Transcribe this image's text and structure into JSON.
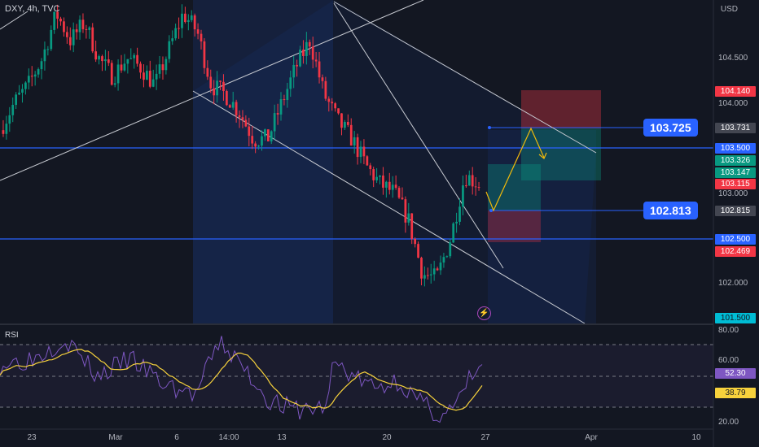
{
  "header": {
    "symbol": "DXY",
    "interval": "4h",
    "source": "TVC",
    "separator": ", "
  },
  "currency": "USD",
  "price_ticks": [
    "104.500",
    "104.000",
    "103.000",
    "102.000"
  ],
  "price_tags": [
    {
      "value": "104.140",
      "color": "#f23645"
    },
    {
      "value": "103.731",
      "color": "#434651"
    },
    {
      "value": "103.500",
      "color": "#2962ff"
    },
    {
      "value": "103.326",
      "color": "#089981"
    },
    {
      "value": "103.147",
      "color": "#089981"
    },
    {
      "value": "103.115",
      "color": "#f23645"
    },
    {
      "value": "102.815",
      "color": "#434651"
    },
    {
      "value": "102.500",
      "color": "#2962ff"
    },
    {
      "value": "102.469",
      "color": "#f23645"
    },
    {
      "value": "101.500",
      "color": "#00bcd4"
    }
  ],
  "labels": {
    "target": "103.725",
    "entry": "102.813"
  },
  "rsi": {
    "title": "RSI",
    "ticks": [
      "80.00",
      "60.00",
      "20.00"
    ],
    "value": "52.30",
    "ma_value": "38.79",
    "value_color": "#7e57c2",
    "ma_color": "#f7d23c"
  },
  "x_axis": [
    "23",
    "Mar",
    "6",
    "14:00",
    "13",
    "20",
    "27",
    "Apr",
    "10"
  ],
  "colors": {
    "up": "#089981",
    "down": "#f23645",
    "horizontal": "#2962ff",
    "channel": "#b2b5be"
  },
  "chart_data": {
    "type": "candlestick",
    "interval": "4h",
    "price_axis": {
      "ticks": [
        104.5,
        104.0,
        103.0,
        102.0
      ]
    },
    "horizontal_levels": [
      103.5,
      102.5
    ],
    "trade_setup": {
      "entry": 102.813,
      "target": 103.725,
      "stop": 102.469
    },
    "rsi": {
      "value": 52.3,
      "ma": 38.79,
      "ticks": [
        80,
        60,
        20
      ]
    },
    "close_path": [
      103.7,
      104.0,
      104.2,
      104.5,
      105.0,
      104.7,
      104.9,
      104.5,
      104.3,
      104.5,
      104.4,
      104.2,
      104.6,
      105.0,
      104.8,
      104.2,
      104.1,
      103.9,
      103.6,
      103.6,
      104.0,
      104.4,
      104.7,
      104.1,
      103.8,
      103.6,
      103.3,
      103.1,
      103.0,
      102.7,
      102.1,
      102.05,
      102.5,
      103.2,
      103.1
    ]
  }
}
